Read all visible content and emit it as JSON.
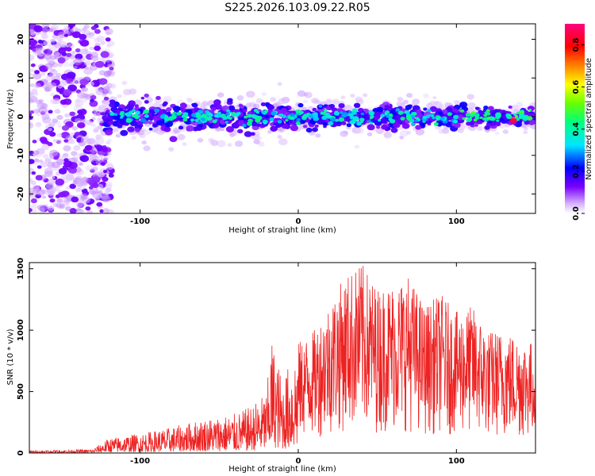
{
  "title": "S225.2026.103.09.22.R05",
  "colors": {
    "snr_line": "#ee2222",
    "background": "#ffffff",
    "frame": "#000000"
  },
  "chart_data": [
    {
      "type": "heatmap",
      "xlabel": "Height of straight line (km)",
      "ylabel": "Frequency (Hz)",
      "xlim": [
        -170,
        150
      ],
      "ylim": [
        -25,
        24
      ],
      "xticks": [
        -100,
        0,
        100
      ],
      "yticks": [
        -20,
        -10,
        0,
        10,
        20
      ],
      "colorbar": {
        "label": "Normalized spectral amplitude",
        "range": [
          0,
          0.9
        ],
        "ticks": [
          "0.0",
          "0.2",
          "0.4",
          "0.6",
          "0.8"
        ],
        "colormap": "rainbow (white-violet-blue-cyan-green-yellow-red-magenta)"
      },
      "peak": {
        "x": 136,
        "y": -1,
        "amplitude": 0.85
      }
    },
    {
      "type": "line",
      "xlabel": "Height of straight line (km)",
      "ylabel": "SNR (10 * v/v)",
      "xlim": [
        -170,
        150
      ],
      "ylim": [
        0,
        1550
      ],
      "xticks": [
        -100,
        0,
        100
      ],
      "yticks": [
        0,
        500,
        1000,
        1500
      ],
      "series": [
        {
          "envelope_x": [
            -170,
            -130,
            -120,
            -100,
            -80,
            -60,
            -40,
            -30,
            -20,
            -17,
            -10,
            0,
            10,
            20,
            30,
            40,
            50,
            60,
            70,
            80,
            90,
            100,
            110,
            120,
            130,
            140,
            150
          ],
          "envelope_y": [
            20,
            30,
            120,
            160,
            210,
            280,
            320,
            380,
            500,
            950,
            600,
            900,
            1000,
            1250,
            1450,
            1550,
            1350,
            1400,
            1450,
            1200,
            1300,
            1150,
            1200,
            1000,
            1000,
            950,
            900
          ]
        }
      ]
    }
  ]
}
